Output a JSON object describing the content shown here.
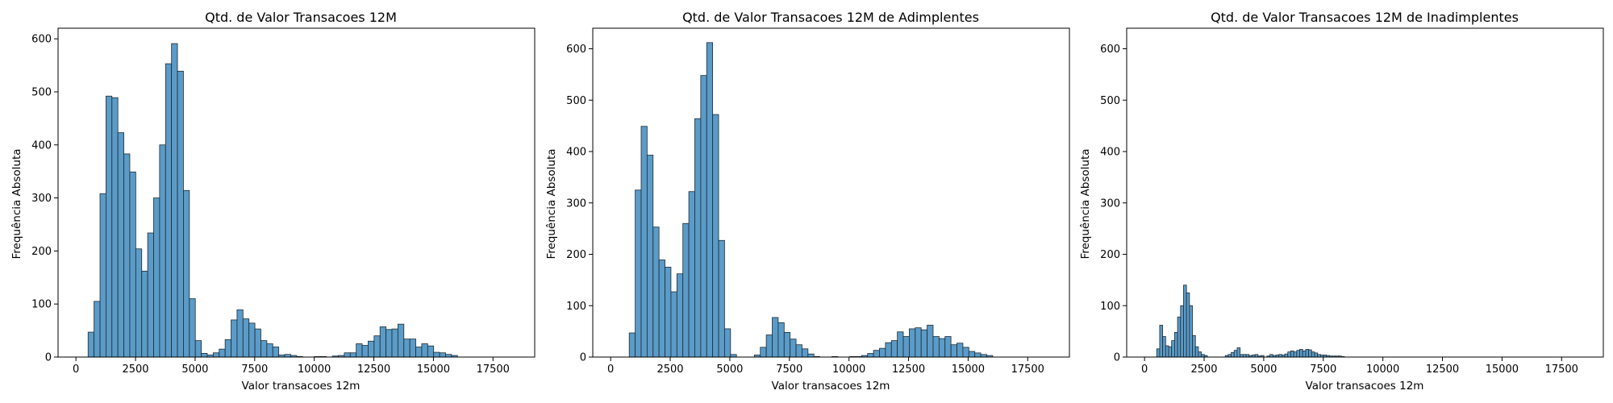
{
  "colors": {
    "bar_fill": "#5a9bc8",
    "bar_edge": "#1f2a33"
  },
  "chart_data": [
    {
      "type": "bar",
      "title": "Qtd. de Valor Transacoes 12M",
      "xlabel": "Valor transacoes 12m",
      "ylabel": "Frequência Absoluta",
      "xlim": [
        -750,
        19250
      ],
      "ylim": [
        0,
        620
      ],
      "xticks": [
        0,
        2500,
        5000,
        7500,
        10000,
        12500,
        15000,
        17500
      ],
      "xtick_labels": [
        "0",
        "2500",
        "5000",
        "7500",
        "10000",
        "12500",
        "15000",
        "17500"
      ],
      "yticks": [
        0,
        100,
        200,
        300,
        400,
        500,
        600
      ],
      "ytick_labels": [
        "0",
        "100",
        "200",
        "300",
        "400",
        "500",
        "600"
      ],
      "bin_start": 510,
      "bin_width": 250,
      "values": [
        47,
        105,
        308,
        492,
        489,
        423,
        383,
        349,
        204,
        162,
        234,
        300,
        400,
        553,
        591,
        539,
        314,
        110,
        31,
        7,
        4,
        8,
        15,
        33,
        70,
        89,
        72,
        64,
        53,
        31,
        25,
        19,
        4,
        5,
        3,
        1,
        0,
        0,
        1,
        1,
        0,
        2,
        3,
        8,
        8,
        25,
        22,
        30,
        40,
        57,
        52,
        53,
        62,
        34,
        34,
        19,
        25,
        21,
        9,
        8,
        5,
        3
      ],
      "grid": false
    },
    {
      "type": "bar",
      "title": "Qtd. de Valor Transacoes 12M de Adimplentes",
      "xlabel": "Valor transacoes 12m",
      "ylabel": "Frequência Absoluta",
      "xlim": [
        -750,
        19250
      ],
      "ylim": [
        0,
        640
      ],
      "xticks": [
        0,
        2500,
        5000,
        7500,
        10000,
        12500,
        15000,
        17500
      ],
      "xtick_labels": [
        "0",
        "2500",
        "5000",
        "7500",
        "10000",
        "12500",
        "15000",
        "17500"
      ],
      "yticks": [
        0,
        100,
        200,
        300,
        400,
        500,
        600
      ],
      "ytick_labels": [
        "0",
        "100",
        "200",
        "300",
        "400",
        "500",
        "600"
      ],
      "bin_start": 780,
      "bin_width": 250,
      "values": [
        47,
        325,
        449,
        393,
        253,
        189,
        175,
        127,
        162,
        260,
        322,
        464,
        548,
        612,
        472,
        227,
        55,
        5,
        0,
        0,
        0,
        4,
        19,
        43,
        77,
        67,
        48,
        35,
        24,
        16,
        6,
        1,
        0,
        0,
        1,
        0,
        0,
        1,
        1,
        3,
        7,
        13,
        17,
        28,
        32,
        49,
        40,
        55,
        57,
        53,
        62,
        40,
        36,
        40,
        24,
        27,
        19,
        11,
        8,
        5,
        3
      ],
      "grid": false
    },
    {
      "type": "bar",
      "title": "Qtd. de Valor Transacoes 12M de Inadimplentes",
      "xlabel": "Valor transacoes 12m",
      "ylabel": "Frequência Absoluta",
      "xlim": [
        -750,
        19250
      ],
      "ylim": [
        0,
        640
      ],
      "xticks": [
        0,
        2500,
        5000,
        7500,
        10000,
        12500,
        15000,
        17500
      ],
      "xtick_labels": [
        "0",
        "2500",
        "5000",
        "7500",
        "10000",
        "12500",
        "15000",
        "17500"
      ],
      "yticks": [
        0,
        100,
        200,
        300,
        400,
        500,
        600
      ],
      "ytick_labels": [
        "0",
        "100",
        "200",
        "300",
        "400",
        "500",
        "600"
      ],
      "bin_start": 510,
      "bin_width": 125,
      "values": [
        16,
        62,
        40,
        22,
        20,
        32,
        48,
        78,
        100,
        140,
        125,
        100,
        42,
        20,
        10,
        5,
        3,
        0,
        0,
        0,
        0,
        0,
        0,
        3,
        5,
        9,
        13,
        18,
        5,
        5,
        5,
        3,
        4,
        5,
        2,
        3,
        0,
        2,
        5,
        3,
        4,
        5,
        4,
        6,
        10,
        12,
        10,
        13,
        15,
        12,
        15,
        14,
        10,
        8,
        5,
        4,
        4,
        3,
        2,
        2,
        2,
        2,
        1
      ],
      "grid": false
    }
  ]
}
